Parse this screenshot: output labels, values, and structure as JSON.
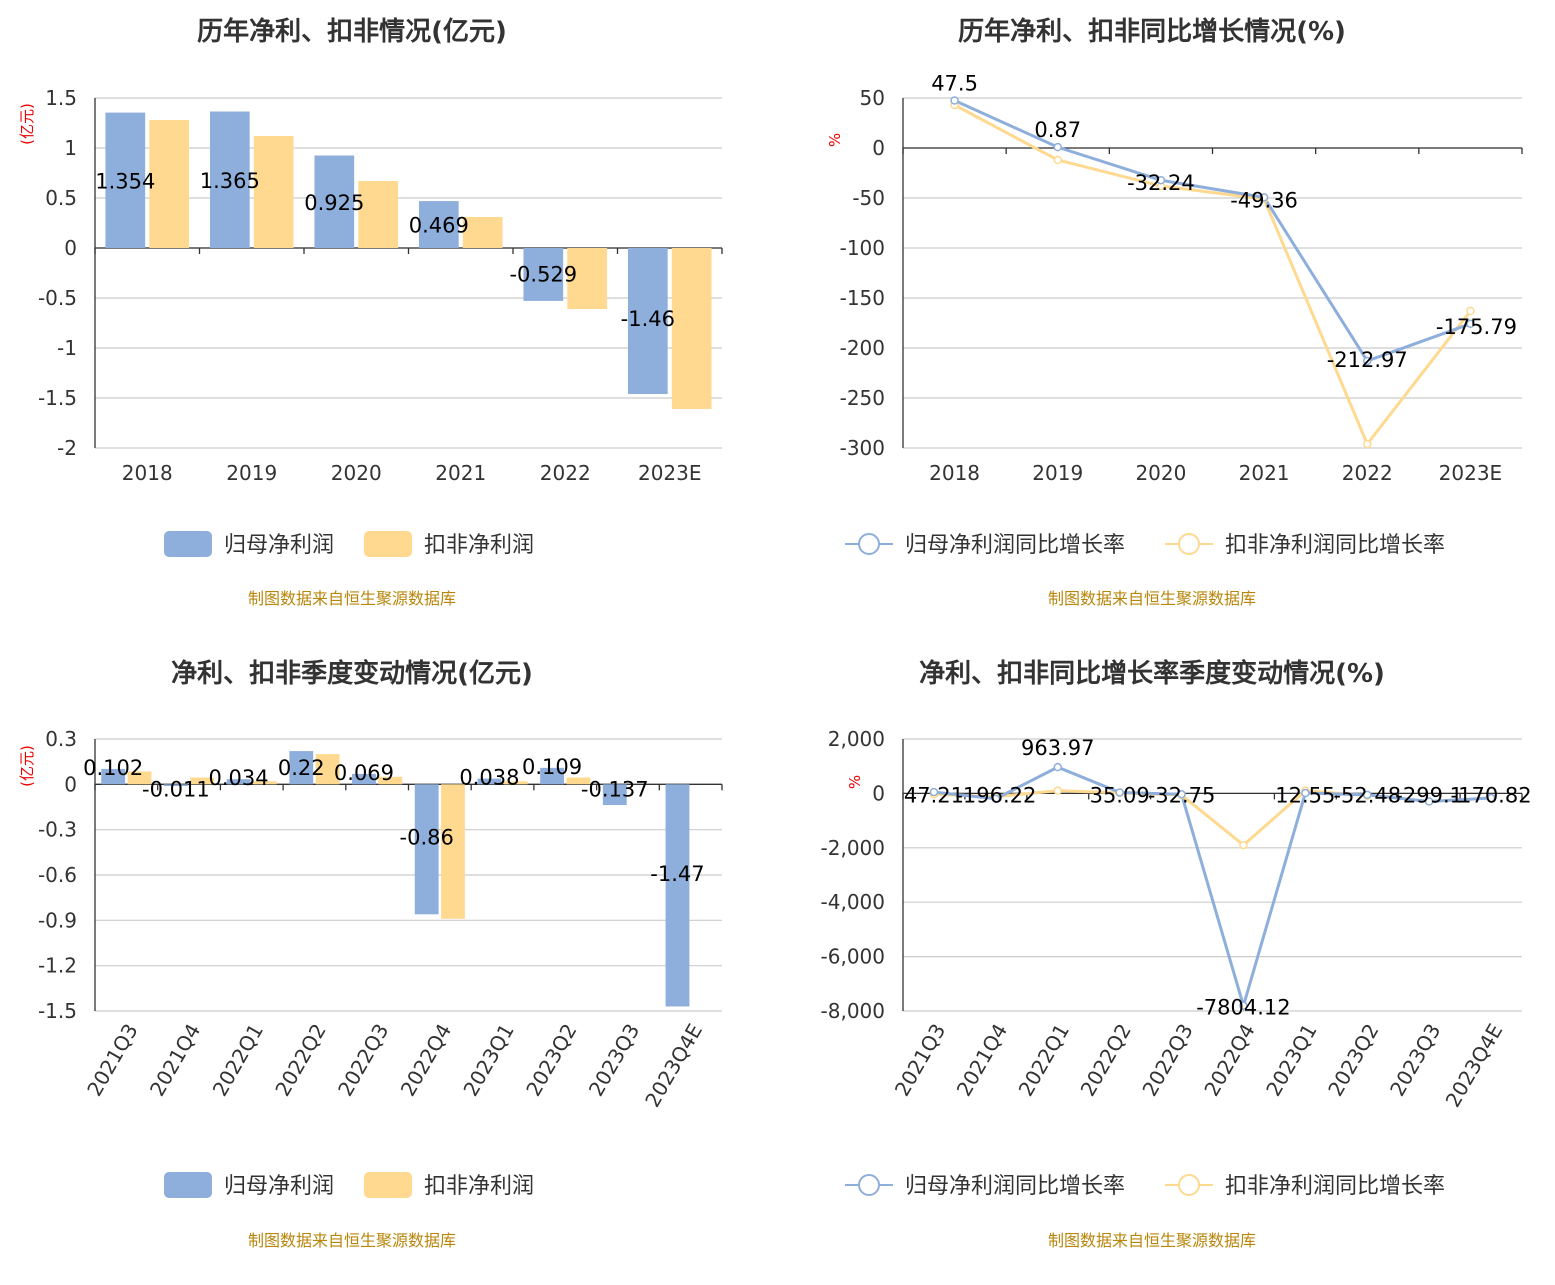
{
  "colors": {
    "series1": "#8eaedb",
    "series2": "#ffd990",
    "source_text": "#b8860b",
    "unit_text": "#ee0000"
  },
  "source_note": "制图数据来自恒生聚源数据库",
  "chart_data": [
    {
      "type": "bar",
      "title": "历年净利、扣非情况(亿元)",
      "ylabel": "(亿元)",
      "ylim": [
        -2,
        1.5
      ],
      "yticks": [
        1.5,
        1,
        0.5,
        0,
        -0.5,
        -1,
        -1.5,
        -2
      ],
      "ytick_labels": [
        "1.5",
        "1",
        "0.5",
        "0",
        "-0.5",
        "-1",
        "-1.5",
        "-2"
      ],
      "categories": [
        "2018",
        "2019",
        "2020",
        "2021",
        "2022",
        "2023E"
      ],
      "series": [
        {
          "name": "归母净利润",
          "values": [
            1.354,
            1.365,
            0.925,
            0.469,
            -0.529,
            -1.46
          ],
          "labels": [
            "1.354",
            "1.365",
            "0.925",
            "0.469",
            "-0.529",
            "-1.46"
          ]
        },
        {
          "name": "扣非净利润",
          "values": [
            1.28,
            1.12,
            0.67,
            0.31,
            -0.61,
            -1.61
          ]
        }
      ],
      "legend": "bottom",
      "grid": true
    },
    {
      "type": "line",
      "title": "历年净利、扣非同比增长情况(%)",
      "ylabel": "%",
      "ylim": [
        -300,
        50
      ],
      "yticks": [
        50,
        0,
        -50,
        -100,
        -150,
        -200,
        -250,
        -300
      ],
      "ytick_labels": [
        "50",
        "0",
        "-50",
        "-100",
        "-150",
        "-200",
        "-250",
        "-300"
      ],
      "categories": [
        "2018",
        "2019",
        "2020",
        "2021",
        "2022",
        "2023E"
      ],
      "series": [
        {
          "name": "归母净利润同比增长率",
          "values": [
            47.5,
            0.87,
            -32.24,
            -49.36,
            -212.97,
            -175.79
          ],
          "labels": [
            "47.5",
            "0.87",
            "-32.24",
            "-49.36",
            "-212.97",
            "-175.79"
          ]
        },
        {
          "name": "扣非净利润同比增长率",
          "values": [
            43,
            -12,
            -38,
            -51,
            -296,
            -163
          ]
        }
      ],
      "legend": "bottom",
      "grid": true
    },
    {
      "type": "bar",
      "title": "净利、扣非季度变动情况(亿元)",
      "ylabel": "(亿元)",
      "ylim": [
        -1.5,
        0.3
      ],
      "yticks": [
        0.3,
        0,
        -0.3,
        -0.6,
        -0.9,
        -1.2,
        -1.5
      ],
      "ytick_labels": [
        "0.3",
        "0",
        "-0.3",
        "-0.6",
        "-0.9",
        "-1.2",
        "-1.5"
      ],
      "categories": [
        "2021Q3",
        "2021Q4",
        "2022Q1",
        "2022Q2",
        "2022Q3",
        "2022Q4",
        "2023Q1",
        "2023Q2",
        "2023Q3",
        "2023Q4E"
      ],
      "series": [
        {
          "name": "归母净利润",
          "values": [
            0.102,
            -0.011,
            0.034,
            0.22,
            0.069,
            -0.86,
            0.038,
            0.109,
            -0.137,
            -1.47
          ],
          "labels": [
            "0.102",
            "-0.011",
            "0.034",
            "0.22",
            "0.069",
            "-0.86",
            "0.038",
            "0.109",
            "-0.137",
            "-1.47"
          ]
        },
        {
          "name": "扣非净利润",
          "values": [
            0.085,
            0.045,
            0.02,
            0.2,
            0.05,
            -0.89,
            0.02,
            0.045,
            null,
            null
          ]
        }
      ],
      "legend": "bottom",
      "grid": true
    },
    {
      "type": "line",
      "title": "净利、扣非同比增长率季度变动情况(%)",
      "ylabel": "%",
      "ylim": [
        -8000,
        2000
      ],
      "yticks": [
        2000,
        0,
        -2000,
        -4000,
        -6000,
        -8000
      ],
      "ytick_labels": [
        "2,000",
        "0",
        "-2,000",
        "-4,000",
        "-6,000",
        "-8,000"
      ],
      "categories": [
        "2021Q3",
        "2021Q4",
        "2022Q1",
        "2022Q2",
        "2022Q3",
        "2022Q4",
        "2023Q1",
        "2023Q2",
        "2023Q3",
        "2023Q4E"
      ],
      "series": [
        {
          "name": "归母净利润同比增长率",
          "values": [
            47.21,
            -196.22,
            963.97,
            35.09,
            -32.75,
            -7804.12,
            12.55,
            -52.48,
            -299.1,
            -170.82
          ],
          "labels": [
            "47.21",
            "-196.22",
            "963.97",
            "35.09",
            "-32.75",
            "-7804.12",
            "12.55",
            "-52.48",
            "-299.1",
            "-170.82"
          ]
        },
        {
          "name": "扣非净利润同比增长率",
          "values": [
            -30,
            -120,
            100,
            20,
            -60,
            -1900,
            100,
            -80,
            null,
            null
          ]
        }
      ],
      "legend": "bottom",
      "grid": true
    }
  ]
}
